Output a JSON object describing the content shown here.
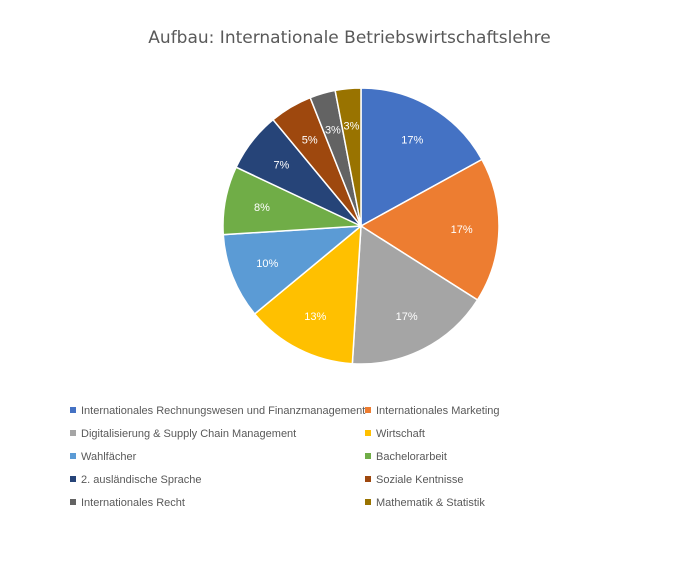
{
  "chart_data": {
    "type": "pie",
    "title": "Aufbau: Internationale Betriebswirtschaftslehre",
    "legend_position": "bottom",
    "slices": [
      {
        "name": "Internationales Rechnungswesen und Finanzmanagement",
        "value": 17,
        "label": "17%",
        "color": "#4472C4"
      },
      {
        "name": "Internationales Marketing",
        "value": 17,
        "label": "17%",
        "color": "#ED7D31"
      },
      {
        "name": "Digitalisierung & Supply Chain Management",
        "value": 17,
        "label": "17%",
        "color": "#A5A5A5"
      },
      {
        "name": "Wirtschaft",
        "value": 13,
        "label": "13%",
        "color": "#FFC000"
      },
      {
        "name": "Wahlfächer",
        "value": 10,
        "label": "10%",
        "color": "#5B9BD5"
      },
      {
        "name": "Bachelorarbeit",
        "value": 8,
        "label": "8%",
        "color": "#70AD47"
      },
      {
        "name": "2. ausländische Sprache",
        "value": 7,
        "label": "7%",
        "color": "#264478"
      },
      {
        "name": "Soziale Kentnisse",
        "value": 5,
        "label": "5%",
        "color": "#9E480E"
      },
      {
        "name": "Internationales Recht",
        "value": 3,
        "label": "3%",
        "color": "#636363"
      },
      {
        "name": "Mathematik & Statistik",
        "value": 3,
        "label": "3%",
        "color": "#997300"
      }
    ]
  }
}
